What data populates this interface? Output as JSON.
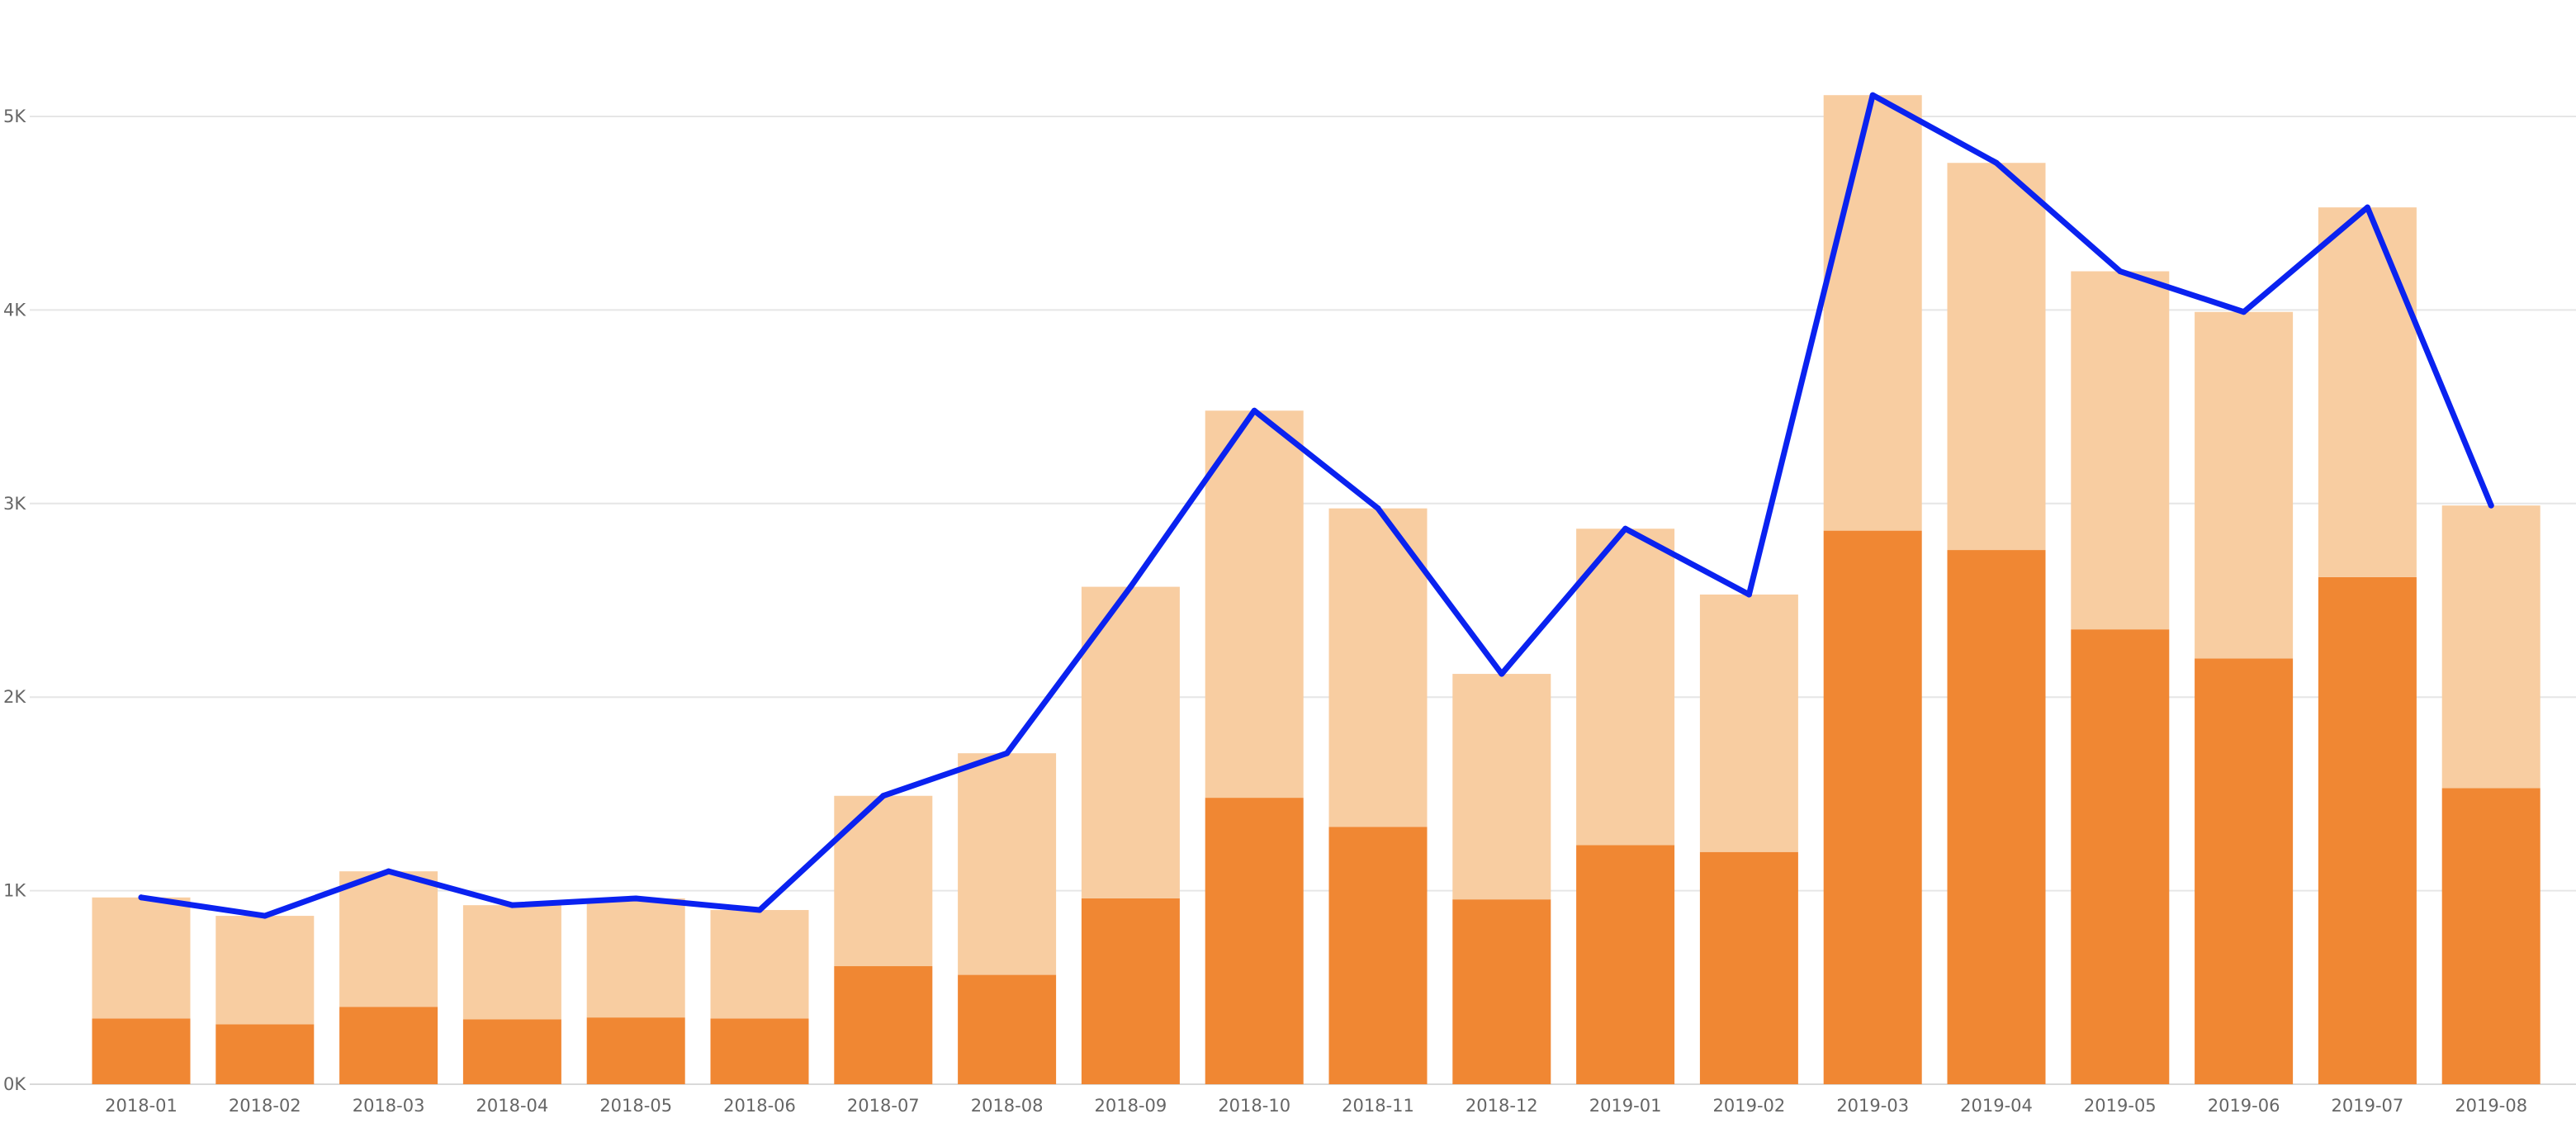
{
  "chart_data": {
    "type": "bar",
    "stacked": true,
    "title": "",
    "xlabel": "",
    "ylabel": "",
    "ylim": [
      0,
      5500
    ],
    "y_ticks": [
      {
        "value": 0,
        "label": "0K"
      },
      {
        "value": 1000,
        "label": "1K"
      },
      {
        "value": 2000,
        "label": "2K"
      },
      {
        "value": 3000,
        "label": "3K"
      },
      {
        "value": 4000,
        "label": "4K"
      },
      {
        "value": 5000,
        "label": "5K"
      }
    ],
    "grid": true,
    "legend": "none",
    "categories": [
      "2018-01",
      "2018-02",
      "2018-03",
      "2018-04",
      "2018-05",
      "2018-06",
      "2018-07",
      "2018-08",
      "2018-09",
      "2018-10",
      "2018-11",
      "2018-12",
      "2019-01",
      "2019-02",
      "2019-03",
      "2019-04",
      "2019-05",
      "2019-06",
      "2019-07",
      "2019-08"
    ],
    "series": [
      {
        "type": "bar",
        "color": "#f08733",
        "values": [
          340,
          310,
          400,
          335,
          345,
          340,
          610,
          565,
          960,
          1480,
          1330,
          955,
          1235,
          1200,
          2860,
          2760,
          2350,
          2200,
          2620,
          1530
        ]
      },
      {
        "type": "bar",
        "color": "#f8cda1",
        "values": [
          625,
          560,
          700,
          590,
          615,
          560,
          880,
          1145,
          1610,
          2000,
          1645,
          1165,
          1635,
          1330,
          2250,
          2000,
          1850,
          1790,
          1910,
          1460
        ]
      },
      {
        "type": "line",
        "color": "#0a22f0",
        "values": [
          965,
          870,
          1100,
          925,
          960,
          900,
          1490,
          1710,
          2570,
          3480,
          2975,
          2120,
          2870,
          2530,
          5110,
          4760,
          4200,
          3990,
          4530,
          2990
        ]
      }
    ]
  }
}
